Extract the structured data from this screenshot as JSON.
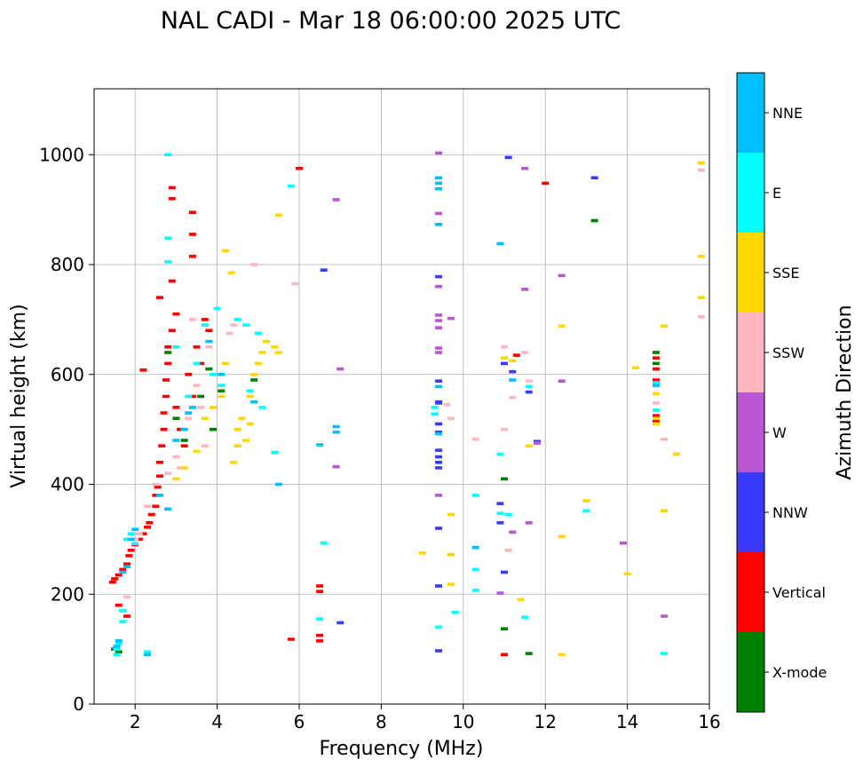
{
  "chart_data": {
    "type": "scatter",
    "title": "NAL CADI - Mar 18 06:00:00 2025 UTC",
    "xlabel": "Frequency (MHz)",
    "ylabel": "Virtual height (km)",
    "xlim": [
      1,
      16
    ],
    "ylim": [
      0,
      1120
    ],
    "xticks": [
      2,
      4,
      6,
      8,
      10,
      12,
      14,
      16
    ],
    "yticks": [
      0,
      200,
      400,
      600,
      800,
      1000
    ],
    "grid": true,
    "colorbar": {
      "label": "Azimuth Direction",
      "categories": [
        {
          "name": "X-mode",
          "color": "#008000"
        },
        {
          "name": "Vertical",
          "color": "#ff0000"
        },
        {
          "name": "NNW",
          "color": "#3a3aff"
        },
        {
          "name": "W",
          "color": "#ba55d3"
        },
        {
          "name": "SSW",
          "color": "#ffb6c1"
        },
        {
          "name": "SSE",
          "color": "#ffd700"
        },
        {
          "name": "E",
          "color": "#00ffff"
        },
        {
          "name": "NNE",
          "color": "#00bfff"
        }
      ]
    },
    "series": [
      {
        "name": "X-mode",
        "points": [
          [
            1.5,
            100
          ],
          [
            1.6,
            95
          ],
          [
            2.8,
            640
          ],
          [
            3.0,
            520
          ],
          [
            3.2,
            480
          ],
          [
            3.6,
            560
          ],
          [
            3.8,
            610
          ],
          [
            3.9,
            500
          ],
          [
            4.1,
            570
          ],
          [
            4.9,
            590
          ],
          [
            11.0,
            137
          ],
          [
            11.0,
            410
          ],
          [
            11.6,
            92
          ],
          [
            13.2,
            880
          ],
          [
            14.7,
            620
          ],
          [
            14.7,
            640
          ]
        ]
      },
      {
        "name": "Vertical",
        "points": [
          [
            1.45,
            222
          ],
          [
            1.5,
            228
          ],
          [
            1.6,
            235
          ],
          [
            1.7,
            245
          ],
          [
            1.8,
            255
          ],
          [
            1.85,
            270
          ],
          [
            1.9,
            280
          ],
          [
            2.0,
            290
          ],
          [
            2.1,
            300
          ],
          [
            2.2,
            310
          ],
          [
            2.3,
            322
          ],
          [
            2.35,
            330
          ],
          [
            2.4,
            345
          ],
          [
            2.5,
            360
          ],
          [
            2.5,
            380
          ],
          [
            2.55,
            395
          ],
          [
            2.6,
            415
          ],
          [
            2.6,
            440
          ],
          [
            2.65,
            470
          ],
          [
            2.7,
            500
          ],
          [
            2.7,
            530
          ],
          [
            2.75,
            560
          ],
          [
            2.75,
            590
          ],
          [
            2.8,
            620
          ],
          [
            2.8,
            650
          ],
          [
            2.9,
            680
          ],
          [
            3.0,
            710
          ],
          [
            2.6,
            740
          ],
          [
            2.9,
            770
          ],
          [
            2.9,
            920
          ],
          [
            2.9,
            940
          ],
          [
            3.4,
            815
          ],
          [
            3.4,
            855
          ],
          [
            3.4,
            895
          ],
          [
            3.0,
            540
          ],
          [
            3.1,
            500
          ],
          [
            3.2,
            470
          ],
          [
            3.3,
            600
          ],
          [
            3.4,
            560
          ],
          [
            3.5,
            650
          ],
          [
            3.6,
            620
          ],
          [
            3.7,
            700
          ],
          [
            3.8,
            680
          ],
          [
            2.2,
            608
          ],
          [
            1.6,
            180
          ],
          [
            1.7,
            170
          ],
          [
            1.8,
            160
          ],
          [
            5.8,
            118
          ],
          [
            6.0,
            975
          ],
          [
            6.5,
            215
          ],
          [
            6.5,
            205
          ],
          [
            6.5,
            125
          ],
          [
            6.5,
            115
          ],
          [
            11.0,
            90
          ],
          [
            11.3,
            635
          ],
          [
            12.0,
            948
          ],
          [
            14.7,
            630
          ],
          [
            14.7,
            610
          ],
          [
            14.7,
            590
          ],
          [
            14.7,
            525
          ],
          [
            14.7,
            515
          ]
        ]
      },
      {
        "name": "NNW",
        "points": [
          [
            6.6,
            790
          ],
          [
            7.0,
            148
          ],
          [
            9.4,
            588
          ],
          [
            9.4,
            550
          ],
          [
            9.4,
            510
          ],
          [
            9.4,
            495
          ],
          [
            9.4,
            462
          ],
          [
            9.4,
            450
          ],
          [
            9.4,
            440
          ],
          [
            9.4,
            430
          ],
          [
            9.4,
            320
          ],
          [
            9.4,
            215
          ],
          [
            9.4,
            97
          ],
          [
            9.4,
            778
          ],
          [
            10.9,
            365
          ],
          [
            10.9,
            330
          ],
          [
            11.0,
            240
          ],
          [
            11.0,
            620
          ],
          [
            11.1,
            995
          ],
          [
            11.2,
            605
          ],
          [
            11.6,
            568
          ],
          [
            11.8,
            478
          ],
          [
            13.2,
            958
          ],
          [
            9.4,
            548
          ]
        ]
      },
      {
        "name": "W",
        "points": [
          [
            6.9,
            918
          ],
          [
            7.0,
            610
          ],
          [
            6.9,
            432
          ],
          [
            9.4,
            1003
          ],
          [
            9.4,
            893
          ],
          [
            9.4,
            760
          ],
          [
            9.4,
            708
          ],
          [
            9.4,
            698
          ],
          [
            9.4,
            685
          ],
          [
            9.4,
            648
          ],
          [
            9.4,
            640
          ],
          [
            9.4,
            380
          ],
          [
            9.7,
            702
          ],
          [
            10.9,
            202
          ],
          [
            11.2,
            313
          ],
          [
            11.5,
            975
          ],
          [
            11.5,
            755
          ],
          [
            11.6,
            330
          ],
          [
            11.8,
            475
          ],
          [
            12.4,
            780
          ],
          [
            12.4,
            588
          ],
          [
            13.9,
            293
          ],
          [
            14.9,
            160
          ]
        ]
      },
      {
        "name": "SSW",
        "points": [
          [
            1.8,
            195
          ],
          [
            2.0,
            300
          ],
          [
            2.1,
            310
          ],
          [
            2.3,
            360
          ],
          [
            2.5,
            400
          ],
          [
            2.8,
            420
          ],
          [
            3.0,
            450
          ],
          [
            3.1,
            430
          ],
          [
            3.3,
            520
          ],
          [
            3.4,
            700
          ],
          [
            3.5,
            580
          ],
          [
            3.6,
            540
          ],
          [
            3.7,
            470
          ],
          [
            3.8,
            650
          ],
          [
            4.3,
            675
          ],
          [
            4.4,
            690
          ],
          [
            4.9,
            800
          ],
          [
            5.9,
            765
          ],
          [
            9.6,
            545
          ],
          [
            9.7,
            520
          ],
          [
            10.3,
            482
          ],
          [
            11.0,
            650
          ],
          [
            11.0,
            500
          ],
          [
            11.1,
            280
          ],
          [
            11.2,
            558
          ],
          [
            11.5,
            640
          ],
          [
            11.6,
            588
          ],
          [
            14.7,
            548
          ],
          [
            14.9,
            482
          ],
          [
            15.8,
            972
          ],
          [
            15.8,
            705
          ]
        ]
      },
      {
        "name": "SSE",
        "points": [
          [
            3.0,
            410
          ],
          [
            3.2,
            430
          ],
          [
            3.5,
            460
          ],
          [
            3.7,
            520
          ],
          [
            3.9,
            540
          ],
          [
            4.1,
            560
          ],
          [
            4.2,
            620
          ],
          [
            4.4,
            440
          ],
          [
            4.5,
            470
          ],
          [
            4.5,
            500
          ],
          [
            4.6,
            520
          ],
          [
            4.7,
            480
          ],
          [
            4.8,
            510
          ],
          [
            4.8,
            560
          ],
          [
            4.9,
            600
          ],
          [
            5.0,
            620
          ],
          [
            5.1,
            640
          ],
          [
            5.2,
            660
          ],
          [
            5.4,
            650
          ],
          [
            5.5,
            640
          ],
          [
            4.2,
            825
          ],
          [
            4.35,
            785
          ],
          [
            5.5,
            890
          ],
          [
            9.0,
            275
          ],
          [
            9.7,
            345
          ],
          [
            9.7,
            218
          ],
          [
            9.7,
            272
          ],
          [
            11.0,
            630
          ],
          [
            11.2,
            625
          ],
          [
            11.4,
            190
          ],
          [
            11.6,
            470
          ],
          [
            12.4,
            305
          ],
          [
            12.4,
            688
          ],
          [
            12.4,
            90
          ],
          [
            13.0,
            370
          ],
          [
            14.0,
            237
          ],
          [
            14.2,
            612
          ],
          [
            14.7,
            565
          ],
          [
            14.7,
            520
          ],
          [
            14.7,
            510
          ],
          [
            14.9,
            688
          ],
          [
            14.9,
            352
          ],
          [
            15.2,
            455
          ],
          [
            15.8,
            985
          ],
          [
            15.8,
            815
          ],
          [
            15.8,
            740
          ]
        ]
      },
      {
        "name": "E",
        "points": [
          [
            1.55,
            90
          ],
          [
            1.55,
            100
          ],
          [
            1.6,
            110
          ],
          [
            1.7,
            150
          ],
          [
            1.7,
            170
          ],
          [
            1.8,
            300
          ],
          [
            1.9,
            310
          ],
          [
            2.0,
            292
          ],
          [
            2.3,
            95
          ],
          [
            2.8,
            1000
          ],
          [
            2.8,
            848
          ],
          [
            2.8,
            805
          ],
          [
            3.0,
            650
          ],
          [
            3.3,
            560
          ],
          [
            3.5,
            620
          ],
          [
            3.7,
            690
          ],
          [
            3.9,
            600
          ],
          [
            4.0,
            720
          ],
          [
            4.1,
            580
          ],
          [
            4.5,
            700
          ],
          [
            4.7,
            690
          ],
          [
            4.8,
            570
          ],
          [
            5.0,
            675
          ],
          [
            5.1,
            540
          ],
          [
            5.4,
            458
          ],
          [
            5.8,
            943
          ],
          [
            6.5,
            155
          ],
          [
            6.6,
            293
          ],
          [
            9.3,
            540
          ],
          [
            9.3,
            528
          ],
          [
            9.4,
            140
          ],
          [
            9.8,
            167
          ],
          [
            10.3,
            245
          ],
          [
            10.3,
            380
          ],
          [
            10.3,
            207
          ],
          [
            10.9,
            455
          ],
          [
            10.9,
            347
          ],
          [
            11.1,
            345
          ],
          [
            11.5,
            158
          ],
          [
            11.6,
            578
          ],
          [
            13.0,
            352
          ],
          [
            14.7,
            585
          ],
          [
            14.7,
            535
          ],
          [
            14.9,
            92
          ]
        ]
      },
      {
        "name": "NNE",
        "points": [
          [
            1.55,
            105
          ],
          [
            1.6,
            115
          ],
          [
            1.7,
            240
          ],
          [
            1.8,
            250
          ],
          [
            1.9,
            300
          ],
          [
            2.0,
            318
          ],
          [
            2.3,
            90
          ],
          [
            2.6,
            380
          ],
          [
            2.8,
            355
          ],
          [
            3.0,
            480
          ],
          [
            3.2,
            500
          ],
          [
            3.3,
            530
          ],
          [
            3.4,
            540
          ],
          [
            3.8,
            660
          ],
          [
            4.1,
            600
          ],
          [
            4.9,
            550
          ],
          [
            5.5,
            400
          ],
          [
            6.5,
            472
          ],
          [
            6.9,
            505
          ],
          [
            6.9,
            495
          ],
          [
            9.4,
            958
          ],
          [
            9.4,
            948
          ],
          [
            9.4,
            938
          ],
          [
            9.4,
            873
          ],
          [
            9.4,
            578
          ],
          [
            9.4,
            492
          ],
          [
            10.3,
            285
          ],
          [
            10.9,
            838
          ],
          [
            11.2,
            590
          ],
          [
            14.7,
            580
          ]
        ]
      }
    ]
  }
}
